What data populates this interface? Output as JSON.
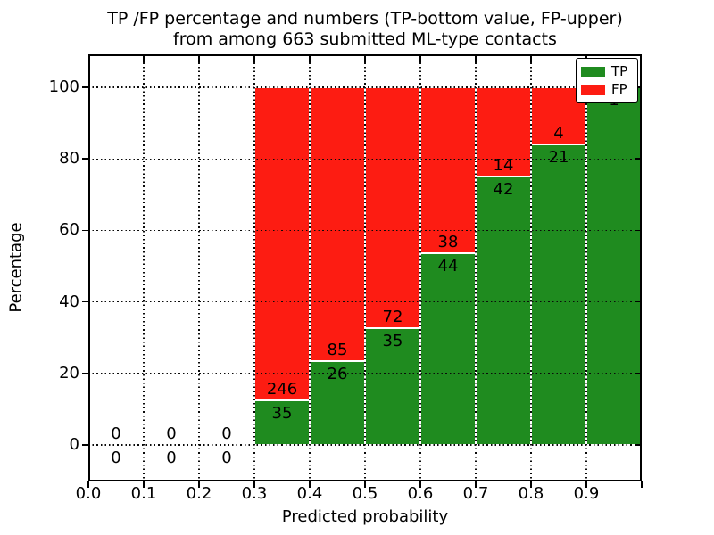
{
  "title": {
    "line1": "TP /FP percentage and numbers (TP-bottom value, FP-upper)",
    "line2": "from among 663 submitted ML-type contacts"
  },
  "axes": {
    "xlabel": "Predicted probability",
    "ylabel": "Percentage",
    "xtick_labels": [
      "0.0",
      "0.1",
      "0.2",
      "0.3",
      "0.4",
      "0.5",
      "0.6",
      "0.7",
      "0.8",
      "0.9"
    ],
    "ytick_labels": [
      "0",
      "20",
      "40",
      "60",
      "80",
      "100"
    ]
  },
  "legend": {
    "items": [
      {
        "label": "TP",
        "color": "#1f8b1f"
      },
      {
        "label": "FP",
        "color": "#fd1c12"
      }
    ]
  },
  "chart_data": {
    "type": "bar",
    "subtype": "stacked-100-percent",
    "title": "TP /FP percentage and numbers (TP-bottom value, FP-upper) from among 663 submitted ML-type contacts",
    "xlabel": "Predicted probability",
    "ylabel": "Percentage",
    "xlim": [
      0.0,
      1.0
    ],
    "ylim": [
      -10,
      109
    ],
    "yticks": [
      0,
      20,
      40,
      60,
      80,
      100
    ],
    "xticks": [
      0.0,
      0.1,
      0.2,
      0.3,
      0.4,
      0.5,
      0.6,
      0.7,
      0.8,
      0.9
    ],
    "grid": true,
    "grid_style": "dotted",
    "grid_above_bars": true,
    "legend_position": "upper right",
    "bin_width": 0.1,
    "categories": [
      "0.0-0.1",
      "0.1-0.2",
      "0.2-0.3",
      "0.3-0.4",
      "0.4-0.5",
      "0.5-0.6",
      "0.6-0.7",
      "0.7-0.8",
      "0.8-0.9",
      "0.9-1.0"
    ],
    "series": [
      {
        "name": "TP",
        "color": "#1f8b1f",
        "values": [
          0,
          0,
          0,
          35,
          26,
          35,
          44,
          42,
          21,
          1
        ]
      },
      {
        "name": "FP",
        "color": "#fd1c12",
        "values": [
          0,
          0,
          0,
          246,
          85,
          72,
          38,
          14,
          4,
          0
        ]
      }
    ],
    "annotation_note": "TP count printed below the TP/FP boundary, FP count printed above it, at each bin center",
    "total_contacts": 663,
    "bar_edge_color": "#ffffff"
  }
}
